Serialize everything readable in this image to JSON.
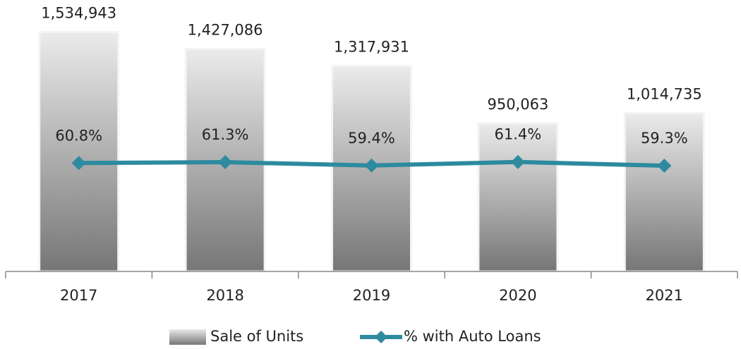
{
  "chart_data": {
    "type": "bar_line",
    "categories": [
      "2017",
      "2018",
      "2019",
      "2020",
      "2021"
    ],
    "series": [
      {
        "name": "Sale of Units",
        "type": "bar",
        "color": "#8c8c8c",
        "values": [
          1534943,
          1427086,
          1317931,
          950063,
          1014735
        ],
        "value_labels": [
          "1,534,943",
          "1,427,086",
          "1,317,931",
          "950,063",
          "1,014,735"
        ]
      },
      {
        "name": "% with Auto Loans",
        "type": "line",
        "axis": "y2",
        "color": "#2e8a9e",
        "values": [
          60.8,
          61.3,
          59.4,
          61.4,
          59.3
        ],
        "value_labels": [
          "60.8%",
          "61.3%",
          "59.4%",
          "61.4%",
          "59.3%"
        ]
      }
    ],
    "ylim": [
      0,
      1600000
    ],
    "y2lim": [
      0,
      140
    ],
    "legend": "bottom"
  }
}
